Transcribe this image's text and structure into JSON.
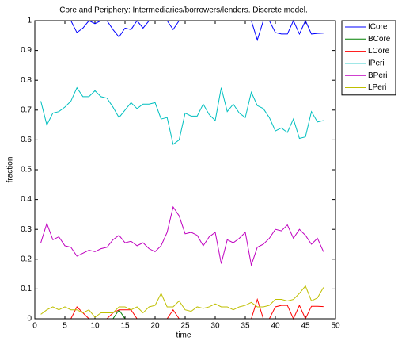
{
  "chart_data": {
    "type": "line",
    "title": "Core and Periphery: Intermediaries/borrowers/lenders. Discrete model.",
    "x_label": "time",
    "y_label": "fraction",
    "x": [
      1,
      2,
      3,
      4,
      5,
      6,
      7,
      8,
      9,
      10,
      11,
      12,
      13,
      14,
      15,
      16,
      17,
      18,
      19,
      20,
      21,
      22,
      23,
      24,
      25,
      26,
      27,
      28,
      29,
      30,
      31,
      32,
      33,
      34,
      35,
      36,
      37,
      38,
      39,
      40,
      41,
      42,
      43,
      44,
      45,
      46,
      47,
      48
    ],
    "xlim": [
      0,
      50
    ],
    "xticks": [
      0,
      5,
      10,
      15,
      20,
      25,
      30,
      35,
      40,
      45,
      50
    ],
    "ylim": [
      0,
      1
    ],
    "yticks": [
      0,
      0.1,
      0.2,
      0.3,
      0.4,
      0.5,
      0.6,
      0.7,
      0.8,
      0.9,
      1
    ],
    "legend": "outside-top-right",
    "series": [
      {
        "name": "ICore",
        "color": "#0000ff",
        "values": [
          1,
          1,
          1,
          1,
          1,
          1,
          0.96,
          0.975,
          1,
          0.99,
          1,
          1,
          0.97,
          0.945,
          0.975,
          0.97,
          1,
          0.975,
          1,
          1,
          1,
          1,
          0.97,
          1,
          1,
          1,
          1,
          1,
          1,
          1,
          1,
          1,
          1,
          1,
          1,
          1,
          0.935,
          1,
          1,
          0.96,
          0.955,
          0.955,
          1,
          0.955,
          1,
          0.955,
          0.957,
          0.958
        ]
      },
      {
        "name": "BCore",
        "color": "#008000",
        "values": [
          0,
          0,
          0,
          0,
          0,
          0,
          0,
          0,
          0,
          0,
          0,
          0,
          0,
          0.03,
          0,
          0,
          0,
          0,
          0,
          0,
          0,
          0,
          0,
          0,
          0,
          0,
          0,
          0,
          0,
          0,
          0,
          0,
          0,
          0,
          0,
          0,
          0,
          0,
          0,
          0,
          0,
          0,
          0,
          0,
          0,
          0,
          0,
          0
        ]
      },
      {
        "name": "LCore",
        "color": "#ff0000",
        "values": [
          0,
          0,
          0,
          0,
          0,
          0,
          0.04,
          0.02,
          0,
          0,
          0,
          0,
          0.02,
          0.03,
          0.03,
          0.03,
          0,
          0,
          0,
          0,
          0,
          0,
          0.03,
          0,
          0,
          0,
          0,
          0,
          0,
          0,
          0,
          0,
          0,
          0,
          0,
          0,
          0.065,
          0,
          0,
          0.04,
          0.045,
          0.045,
          0,
          0.045,
          0,
          0.042,
          0.042,
          0.041
        ]
      },
      {
        "name": "IPeri",
        "color": "#00bfbf",
        "values": [
          0.73,
          0.65,
          0.69,
          0.695,
          0.71,
          0.73,
          0.775,
          0.745,
          0.745,
          0.765,
          0.745,
          0.74,
          0.71,
          0.675,
          0.7,
          0.725,
          0.705,
          0.72,
          0.72,
          0.725,
          0.67,
          0.675,
          0.585,
          0.6,
          0.69,
          0.68,
          0.68,
          0.72,
          0.685,
          0.665,
          0.775,
          0.695,
          0.72,
          0.69,
          0.675,
          0.76,
          0.715,
          0.705,
          0.675,
          0.63,
          0.64,
          0.625,
          0.67,
          0.605,
          0.61,
          0.695,
          0.66,
          0.665
        ]
      },
      {
        "name": "BPeri",
        "color": "#bf00bf",
        "values": [
          0.255,
          0.32,
          0.265,
          0.275,
          0.245,
          0.24,
          0.21,
          0.22,
          0.23,
          0.225,
          0.235,
          0.24,
          0.265,
          0.28,
          0.255,
          0.26,
          0.245,
          0.255,
          0.235,
          0.225,
          0.245,
          0.29,
          0.375,
          0.345,
          0.285,
          0.29,
          0.28,
          0.245,
          0.275,
          0.29,
          0.185,
          0.265,
          0.255,
          0.27,
          0.29,
          0.18,
          0.24,
          0.25,
          0.27,
          0.3,
          0.295,
          0.315,
          0.27,
          0.3,
          0.28,
          0.25,
          0.27,
          0.225
        ]
      },
      {
        "name": "LPeri",
        "color": "#bfbf00",
        "values": [
          0.015,
          0.03,
          0.04,
          0.03,
          0.04,
          0.03,
          0.03,
          0.02,
          0.03,
          0.005,
          0.02,
          0.02,
          0.02,
          0.04,
          0.04,
          0.03,
          0.04,
          0.02,
          0.04,
          0.045,
          0.085,
          0.04,
          0.04,
          0.06,
          0.03,
          0.025,
          0.04,
          0.035,
          0.04,
          0.05,
          0.04,
          0.04,
          0.03,
          0.04,
          0.045,
          0.055,
          0.04,
          0.04,
          0.045,
          0.065,
          0.065,
          0.06,
          0.065,
          0.085,
          0.11,
          0.06,
          0.07,
          0.105
        ]
      }
    ]
  }
}
